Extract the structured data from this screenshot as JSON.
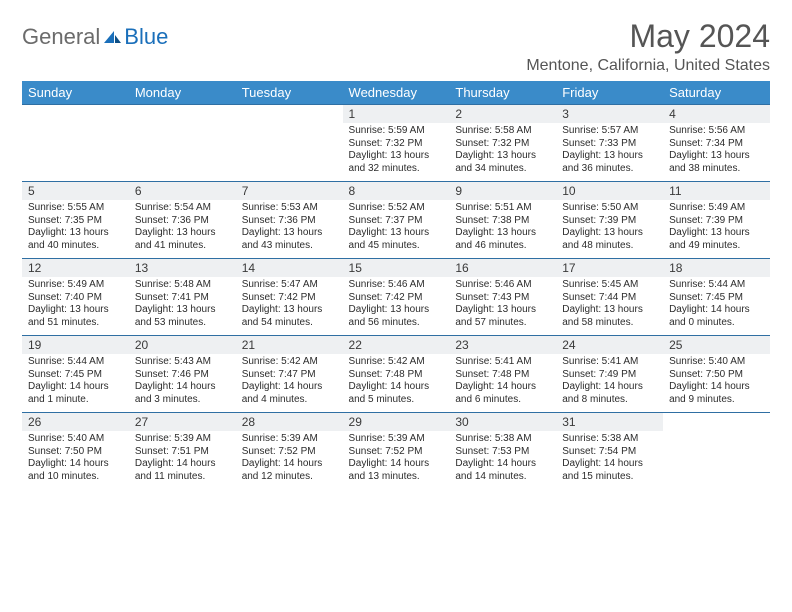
{
  "logo": {
    "part1": "General",
    "part2": "Blue"
  },
  "title": "May 2024",
  "location": "Mentone, California, United States",
  "colors": {
    "header_bg": "#3a8bc9",
    "header_text": "#ffffff",
    "daynum_bg": "#eef0f2",
    "week_divider": "#2f6fa3",
    "body_text": "#2c2c2c",
    "title_text": "#555555",
    "logo_gray": "#6b6b6b",
    "logo_blue": "#1a6fba"
  },
  "day_headers": [
    "Sunday",
    "Monday",
    "Tuesday",
    "Wednesday",
    "Thursday",
    "Friday",
    "Saturday"
  ],
  "weeks": [
    {
      "nums": [
        "",
        "",
        "",
        "1",
        "2",
        "3",
        "4"
      ],
      "cells": [
        "",
        "",
        "",
        "Sunrise: 5:59 AM\nSunset: 7:32 PM\nDaylight: 13 hours and 32 minutes.",
        "Sunrise: 5:58 AM\nSunset: 7:32 PM\nDaylight: 13 hours and 34 minutes.",
        "Sunrise: 5:57 AM\nSunset: 7:33 PM\nDaylight: 13 hours and 36 minutes.",
        "Sunrise: 5:56 AM\nSunset: 7:34 PM\nDaylight: 13 hours and 38 minutes."
      ]
    },
    {
      "nums": [
        "5",
        "6",
        "7",
        "8",
        "9",
        "10",
        "11"
      ],
      "cells": [
        "Sunrise: 5:55 AM\nSunset: 7:35 PM\nDaylight: 13 hours and 40 minutes.",
        "Sunrise: 5:54 AM\nSunset: 7:36 PM\nDaylight: 13 hours and 41 minutes.",
        "Sunrise: 5:53 AM\nSunset: 7:36 PM\nDaylight: 13 hours and 43 minutes.",
        "Sunrise: 5:52 AM\nSunset: 7:37 PM\nDaylight: 13 hours and 45 minutes.",
        "Sunrise: 5:51 AM\nSunset: 7:38 PM\nDaylight: 13 hours and 46 minutes.",
        "Sunrise: 5:50 AM\nSunset: 7:39 PM\nDaylight: 13 hours and 48 minutes.",
        "Sunrise: 5:49 AM\nSunset: 7:39 PM\nDaylight: 13 hours and 49 minutes."
      ]
    },
    {
      "nums": [
        "12",
        "13",
        "14",
        "15",
        "16",
        "17",
        "18"
      ],
      "cells": [
        "Sunrise: 5:49 AM\nSunset: 7:40 PM\nDaylight: 13 hours and 51 minutes.",
        "Sunrise: 5:48 AM\nSunset: 7:41 PM\nDaylight: 13 hours and 53 minutes.",
        "Sunrise: 5:47 AM\nSunset: 7:42 PM\nDaylight: 13 hours and 54 minutes.",
        "Sunrise: 5:46 AM\nSunset: 7:42 PM\nDaylight: 13 hours and 56 minutes.",
        "Sunrise: 5:46 AM\nSunset: 7:43 PM\nDaylight: 13 hours and 57 minutes.",
        "Sunrise: 5:45 AM\nSunset: 7:44 PM\nDaylight: 13 hours and 58 minutes.",
        "Sunrise: 5:44 AM\nSunset: 7:45 PM\nDaylight: 14 hours and 0 minutes."
      ]
    },
    {
      "nums": [
        "19",
        "20",
        "21",
        "22",
        "23",
        "24",
        "25"
      ],
      "cells": [
        "Sunrise: 5:44 AM\nSunset: 7:45 PM\nDaylight: 14 hours and 1 minute.",
        "Sunrise: 5:43 AM\nSunset: 7:46 PM\nDaylight: 14 hours and 3 minutes.",
        "Sunrise: 5:42 AM\nSunset: 7:47 PM\nDaylight: 14 hours and 4 minutes.",
        "Sunrise: 5:42 AM\nSunset: 7:48 PM\nDaylight: 14 hours and 5 minutes.",
        "Sunrise: 5:41 AM\nSunset: 7:48 PM\nDaylight: 14 hours and 6 minutes.",
        "Sunrise: 5:41 AM\nSunset: 7:49 PM\nDaylight: 14 hours and 8 minutes.",
        "Sunrise: 5:40 AM\nSunset: 7:50 PM\nDaylight: 14 hours and 9 minutes."
      ]
    },
    {
      "nums": [
        "26",
        "27",
        "28",
        "29",
        "30",
        "31",
        ""
      ],
      "cells": [
        "Sunrise: 5:40 AM\nSunset: 7:50 PM\nDaylight: 14 hours and 10 minutes.",
        "Sunrise: 5:39 AM\nSunset: 7:51 PM\nDaylight: 14 hours and 11 minutes.",
        "Sunrise: 5:39 AM\nSunset: 7:52 PM\nDaylight: 14 hours and 12 minutes.",
        "Sunrise: 5:39 AM\nSunset: 7:52 PM\nDaylight: 14 hours and 13 minutes.",
        "Sunrise: 5:38 AM\nSunset: 7:53 PM\nDaylight: 14 hours and 14 minutes.",
        "Sunrise: 5:38 AM\nSunset: 7:54 PM\nDaylight: 14 hours and 15 minutes.",
        ""
      ]
    }
  ]
}
